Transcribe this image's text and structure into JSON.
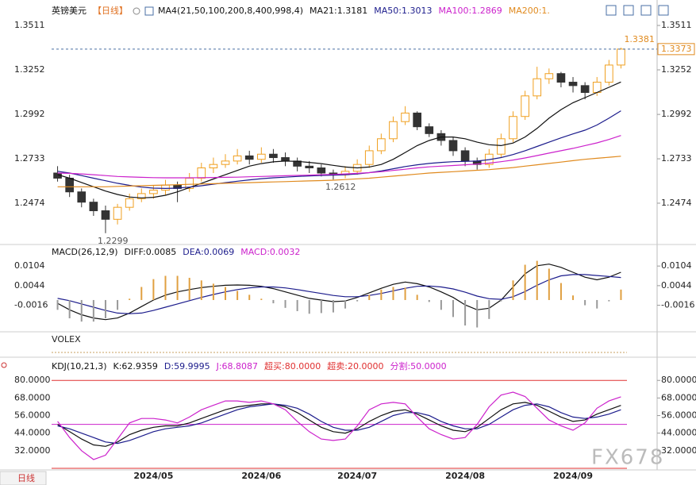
{
  "header": {
    "symbol": "英镑美元",
    "period": "【日线】"
  },
  "chart_data": [
    {
      "type": "candlestick",
      "title": "MA4(21,50,100,200,8,400,998,4)",
      "categories": [
        null,
        null,
        null,
        null,
        null,
        null,
        null,
        null,
        "2024/05",
        null,
        null,
        null,
        null,
        null,
        null,
        null,
        null,
        "2024/06",
        null,
        null,
        null,
        null,
        null,
        null,
        null,
        "2024/07",
        null,
        null,
        null,
        null,
        null,
        null,
        null,
        null,
        "2024/08",
        null,
        null,
        null,
        null,
        null,
        null,
        null,
        null,
        "2024/09",
        null,
        null,
        null,
        null
      ],
      "open": [
        1.265,
        1.262,
        1.254,
        1.248,
        1.243,
        1.238,
        1.245,
        1.25,
        1.253,
        1.255,
        1.258,
        1.256,
        1.262,
        1.268,
        1.27,
        1.272,
        1.275,
        1.273,
        1.276,
        1.274,
        1.272,
        1.269,
        1.268,
        1.265,
        1.264,
        1.266,
        1.27,
        1.278,
        1.285,
        1.295,
        1.3,
        1.292,
        1.288,
        1.284,
        1.278,
        1.272,
        1.27,
        1.276,
        1.285,
        1.298,
        1.31,
        1.32,
        1.323,
        1.318,
        1.316,
        1.312,
        1.318,
        1.328
      ],
      "high": [
        1.269,
        1.264,
        1.256,
        1.25,
        1.246,
        1.247,
        1.253,
        1.256,
        1.258,
        1.261,
        1.26,
        1.265,
        1.271,
        1.274,
        1.276,
        1.279,
        1.278,
        1.28,
        1.279,
        1.277,
        1.274,
        1.272,
        1.27,
        1.267,
        1.269,
        1.273,
        1.281,
        1.288,
        1.298,
        1.304,
        1.301,
        1.294,
        1.29,
        1.286,
        1.28,
        1.274,
        1.279,
        1.288,
        1.301,
        1.313,
        1.327,
        1.326,
        1.324,
        1.321,
        1.318,
        1.321,
        1.331,
        1.3381
      ],
      "low": [
        1.26,
        1.251,
        1.245,
        1.24,
        1.2299,
        1.235,
        1.243,
        1.248,
        1.25,
        1.252,
        1.248,
        1.254,
        1.26,
        1.265,
        1.268,
        1.27,
        1.27,
        1.271,
        1.271,
        1.269,
        1.266,
        1.265,
        1.263,
        1.2612,
        1.262,
        1.264,
        1.268,
        1.276,
        1.283,
        1.293,
        1.29,
        1.286,
        1.281,
        1.275,
        1.269,
        1.267,
        1.268,
        1.274,
        1.283,
        1.296,
        1.308,
        1.317,
        1.315,
        1.312,
        1.308,
        1.31,
        1.316,
        1.326
      ],
      "close": [
        1.262,
        1.254,
        1.248,
        1.243,
        1.238,
        1.245,
        1.25,
        1.253,
        1.255,
        1.258,
        1.256,
        1.262,
        1.268,
        1.27,
        1.272,
        1.275,
        1.273,
        1.276,
        1.274,
        1.272,
        1.269,
        1.268,
        1.265,
        1.264,
        1.266,
        1.27,
        1.278,
        1.285,
        1.295,
        1.3,
        1.292,
        1.288,
        1.284,
        1.278,
        1.272,
        1.27,
        1.276,
        1.285,
        1.298,
        1.31,
        1.32,
        1.323,
        1.318,
        1.316,
        1.312,
        1.318,
        1.328,
        1.3373
      ],
      "up_color": "#f0a020",
      "down_color": "#333333",
      "series": [
        {
          "name": "MA21:1.3181",
          "color": "#111111",
          "values": [
            1.264,
            1.262,
            1.2595,
            1.257,
            1.2545,
            1.2525,
            1.251,
            1.2505,
            1.2508,
            1.252,
            1.254,
            1.2565,
            1.259,
            1.2615,
            1.264,
            1.2665,
            1.269,
            1.2705,
            1.2715,
            1.272,
            1.2718,
            1.2712,
            1.2705,
            1.2695,
            1.2685,
            1.268,
            1.2685,
            1.27,
            1.273,
            1.277,
            1.281,
            1.284,
            1.286,
            1.286,
            1.285,
            1.283,
            1.2815,
            1.281,
            1.2825,
            1.286,
            1.291,
            1.297,
            1.302,
            1.306,
            1.309,
            1.312,
            1.315,
            1.3181
          ]
        },
        {
          "name": "MA50:1.3013",
          "color": "#1c1c8c",
          "values": [
            1.266,
            1.265,
            1.2635,
            1.262,
            1.2605,
            1.259,
            1.2578,
            1.2568,
            1.2562,
            1.256,
            1.2562,
            1.2568,
            1.2576,
            1.2585,
            1.2594,
            1.2602,
            1.261,
            1.2617,
            1.2622,
            1.2626,
            1.263,
            1.2633,
            1.2636,
            1.2638,
            1.264,
            1.2645,
            1.2652,
            1.2662,
            1.2675,
            1.2688,
            1.2698,
            1.2706,
            1.2712,
            1.2716,
            1.2718,
            1.272,
            1.2728,
            1.274,
            1.2758,
            1.278,
            1.2805,
            1.283,
            1.2855,
            1.2878,
            1.29,
            1.293,
            1.297,
            1.3013
          ]
        },
        {
          "name": "MA100:1.2869",
          "color": "#cc22cc",
          "values": [
            1.265,
            1.2648,
            1.2645,
            1.264,
            1.2635,
            1.263,
            1.2627,
            1.2625,
            1.2623,
            1.2622,
            1.2622,
            1.2622,
            1.2623,
            1.2624,
            1.2625,
            1.2626,
            1.2628,
            1.263,
            1.2632,
            1.2634,
            1.2636,
            1.2638,
            1.264,
            1.2642,
            1.2645,
            1.2648,
            1.2652,
            1.2658,
            1.2665,
            1.2672,
            1.268,
            1.2686,
            1.269,
            1.2694,
            1.2698,
            1.2702,
            1.2708,
            1.2716,
            1.2726,
            1.2738,
            1.2752,
            1.2766,
            1.278,
            1.2794,
            1.281,
            1.2826,
            1.2846,
            1.2869
          ]
        },
        {
          "name": "MA200:1.",
          "color": "#e08a1e",
          "values": [
            1.257,
            1.257,
            1.257,
            1.257,
            1.257,
            1.2572,
            1.2574,
            1.2576,
            1.2578,
            1.258,
            1.2582,
            1.2584,
            1.2586,
            1.2588,
            1.259,
            1.2592,
            1.2594,
            1.2596,
            1.2598,
            1.26,
            1.2602,
            1.2604,
            1.2606,
            1.2608,
            1.2612,
            1.2616,
            1.262,
            1.2626,
            1.2632,
            1.2638,
            1.2644,
            1.265,
            1.2654,
            1.2658,
            1.2662,
            1.2666,
            1.267,
            1.2676,
            1.2682,
            1.269,
            1.2698,
            1.2706,
            1.2714,
            1.2722,
            1.273,
            1.2736,
            1.2742,
            1.2748
          ]
        }
      ],
      "annotations": [
        "1.3381",
        "1.2299",
        "1.2612"
      ],
      "ylim": [
        1.2247,
        1.359
      ],
      "yticks": [
        1.2474,
        1.2733,
        1.2992,
        1.3252,
        1.3511
      ]
    },
    {
      "type": "macd",
      "title": "MACD(26,12,9)",
      "series": [
        {
          "name": "DIFF:0.0085",
          "color": "#111111",
          "kind": "line",
          "values": [
            -0.001,
            -0.003,
            -0.0045,
            -0.0055,
            -0.006,
            -0.0055,
            -0.004,
            -0.002,
            0.0,
            0.0015,
            0.0025,
            0.0032,
            0.0038,
            0.0042,
            0.0045,
            0.0046,
            0.0045,
            0.0042,
            0.0035,
            0.0025,
            0.0015,
            0.0005,
            0.0,
            -0.0005,
            -0.0003,
            0.0008,
            0.0022,
            0.0036,
            0.0048,
            0.0055,
            0.005,
            0.004,
            0.0025,
            0.0008,
            -0.0015,
            -0.003,
            -0.0025,
            0.0,
            0.004,
            0.008,
            0.0105,
            0.011,
            0.01,
            0.0085,
            0.007,
            0.0062,
            0.007,
            0.0085
          ]
        },
        {
          "name": "DEA:0.0069",
          "color": "#1c1c8c",
          "kind": "line",
          "values": [
            0.0005,
            -0.0002,
            -0.0012,
            -0.0022,
            -0.0032,
            -0.004,
            -0.0042,
            -0.004,
            -0.0032,
            -0.0022,
            -0.0012,
            -0.0002,
            0.0008,
            0.0017,
            0.0025,
            0.0032,
            0.0037,
            0.004,
            0.004,
            0.0037,
            0.0032,
            0.0026,
            0.002,
            0.0014,
            0.001,
            0.001,
            0.0014,
            0.002,
            0.0028,
            0.0036,
            0.0042,
            0.0043,
            0.004,
            0.0034,
            0.0024,
            0.0012,
            0.0004,
            0.0002,
            0.001,
            0.0026,
            0.0045,
            0.0062,
            0.0074,
            0.0078,
            0.0078,
            0.0075,
            0.0072,
            0.0069
          ]
        },
        {
          "name": "MACD:0.0032",
          "color": "#cc22cc",
          "kind": "bar",
          "up_color": "#e0a040",
          "down_color": "#999999",
          "values": [
            -0.003,
            -0.0056,
            -0.0066,
            -0.0066,
            -0.0056,
            -0.003,
            0.0004,
            0.004,
            0.0064,
            0.0074,
            0.0074,
            0.0068,
            0.006,
            0.005,
            0.004,
            0.0028,
            0.0016,
            0.0004,
            -0.001,
            -0.0024,
            -0.0034,
            -0.0042,
            -0.004,
            -0.0038,
            -0.0026,
            -0.0004,
            0.0016,
            0.0032,
            0.004,
            0.0038,
            0.0016,
            -0.0006,
            -0.003,
            -0.0052,
            -0.0078,
            -0.0084,
            -0.0058,
            -0.0004,
            0.006,
            0.0108,
            0.012,
            0.0096,
            0.0052,
            0.0014,
            -0.0016,
            -0.0026,
            -0.0004,
            0.0032
          ]
        }
      ],
      "ylim": [
        -0.009,
        0.0136
      ],
      "yticks": [
        -0.0016,
        0.0044,
        0.0104
      ]
    },
    {
      "type": "kdj",
      "title": "KDJ(10,21,3)",
      "series": [
        {
          "name": "K:62.9359",
          "color": "#111111",
          "values": [
            50,
            45,
            40,
            36,
            35,
            38,
            43,
            46,
            48,
            49,
            49,
            51,
            54,
            57,
            60,
            62,
            63,
            64,
            64,
            62,
            58,
            53,
            48,
            45,
            44,
            47,
            52,
            56,
            59,
            60,
            57,
            53,
            49,
            46,
            45,
            48,
            54,
            60,
            64,
            65,
            63,
            59,
            55,
            52,
            53,
            57,
            60,
            62.9359
          ]
        },
        {
          "name": "D:59.9995",
          "color": "#1c1c8c",
          "values": [
            49,
            47,
            44,
            41,
            38,
            37,
            39,
            42,
            45,
            47,
            48,
            49,
            51,
            54,
            57,
            60,
            62,
            63,
            64,
            63,
            61,
            57,
            52,
            48,
            46,
            46,
            48,
            52,
            56,
            58,
            58,
            56,
            52,
            49,
            47,
            47,
            50,
            55,
            60,
            63,
            64,
            62,
            58,
            55,
            54,
            55,
            57,
            59.9995
          ]
        },
        {
          "name": "J:68.8087",
          "color": "#cc22cc",
          "values": [
            52,
            41,
            32,
            26,
            29,
            40,
            51,
            54,
            54,
            53,
            51,
            55,
            60,
            63,
            66,
            66,
            65,
            66,
            64,
            60,
            52,
            45,
            40,
            39,
            40,
            49,
            60,
            64,
            65,
            64,
            55,
            47,
            43,
            40,
            41,
            50,
            62,
            70,
            72,
            69,
            61,
            53,
            49,
            46,
            51,
            61,
            66,
            68.8087
          ]
        }
      ],
      "reflines": [
        {
          "name": "超买:80.0000",
          "value": 80,
          "color": "#e03030"
        },
        {
          "name": "超卖:20.0000",
          "value": 20,
          "color": "#e03030"
        },
        {
          "name": "分割:50.0000",
          "value": 50,
          "color": "#cc22cc"
        }
      ],
      "ylim": [
        20,
        85
      ],
      "yticks": [
        {
          "value": 32,
          "label": "32.0000"
        },
        {
          "value": 44,
          "label": "44.0000"
        },
        {
          "value": 56,
          "label": "56.0000"
        },
        {
          "value": 68,
          "label": "68.0000"
        },
        {
          "value": 80,
          "label": "80.0000"
        }
      ]
    }
  ],
  "volex": "VOLEX",
  "footer": {
    "tab": "日线",
    "watermark": "FX678"
  }
}
